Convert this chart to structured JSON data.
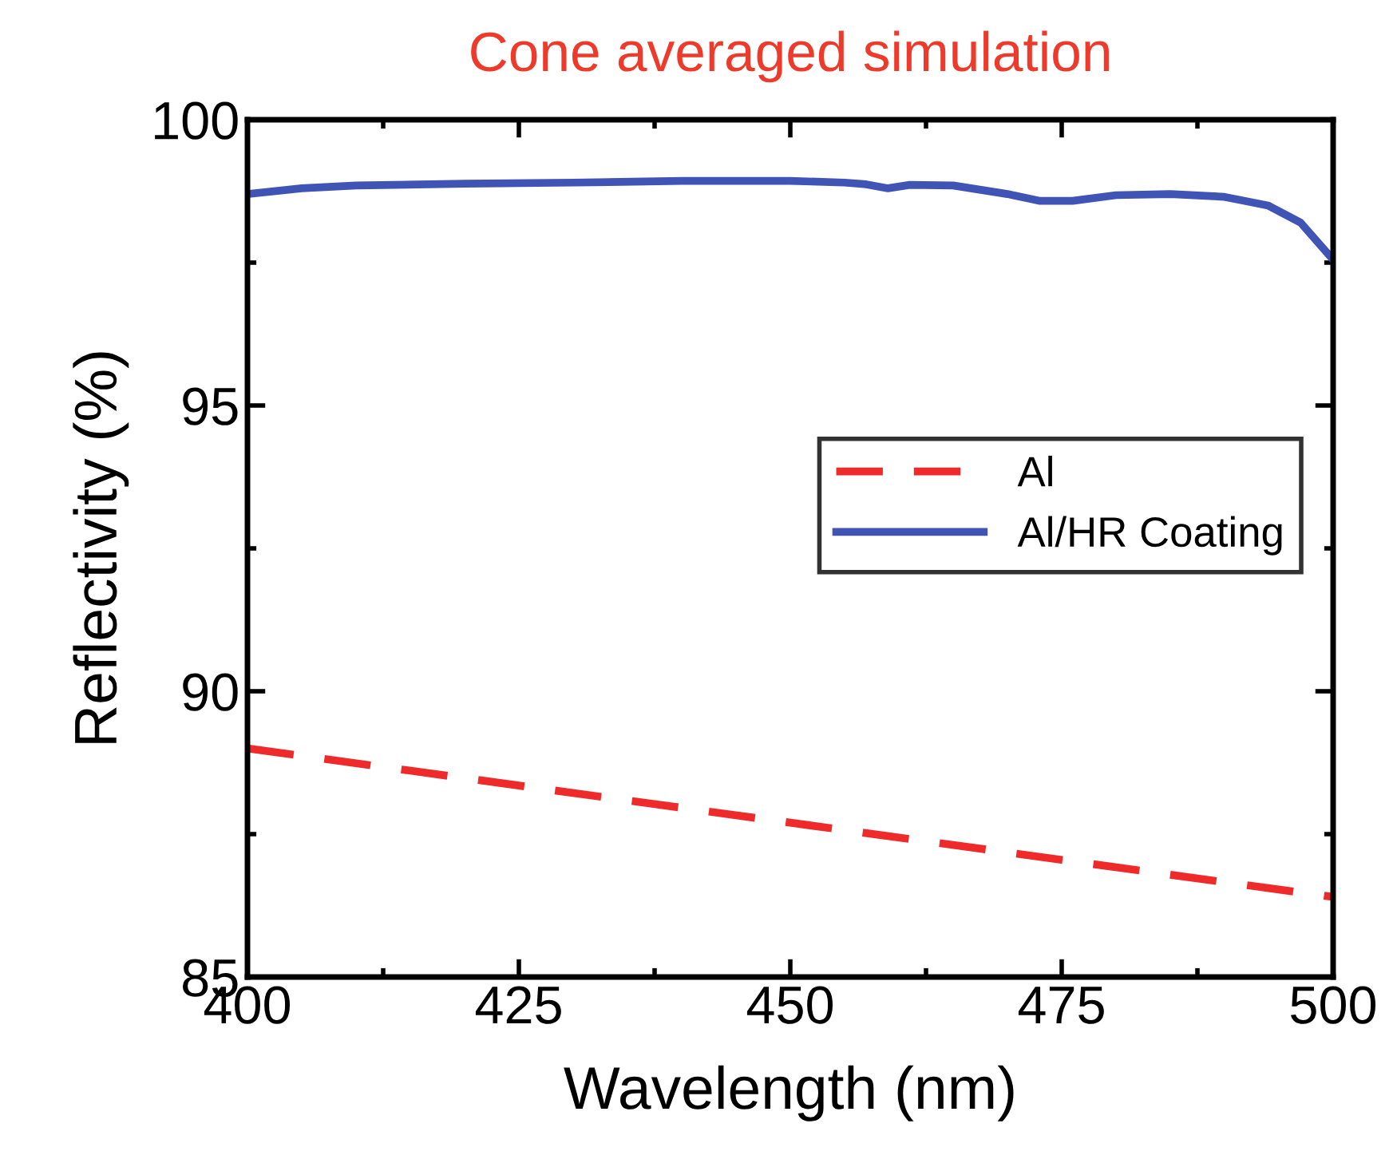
{
  "chart_data": {
    "type": "line",
    "title": "Cone averaged simulation",
    "xlabel": "Wavelength (nm)",
    "ylabel": "Reflectivity (%)",
    "xlim": [
      400,
      500
    ],
    "xticks": [
      400,
      425,
      450,
      475,
      500
    ],
    "ylim": [
      85,
      100
    ],
    "yticks": [
      85,
      90,
      95,
      100
    ],
    "grid": false,
    "legend": "right",
    "series": [
      {
        "name": "Al",
        "color": "#ee2a2a",
        "line_style": "dashed",
        "x": [
          400,
          425,
          450,
          475,
          500
        ],
        "values": [
          89.0,
          88.35,
          87.7,
          87.05,
          86.4
        ]
      },
      {
        "name": "Al/HR Coating",
        "color": "#3f54b5",
        "line_style": "solid",
        "x": [
          400,
          405,
          410,
          420,
          430,
          440,
          450,
          455,
          457,
          459,
          461,
          465,
          470,
          473,
          476,
          480,
          485,
          490,
          494,
          497,
          500
        ],
        "values": [
          98.7,
          98.8,
          98.85,
          98.88,
          98.9,
          98.93,
          98.93,
          98.9,
          98.87,
          98.8,
          98.86,
          98.85,
          98.7,
          98.58,
          98.58,
          98.68,
          98.7,
          98.65,
          98.5,
          98.2,
          97.55
        ]
      }
    ]
  }
}
